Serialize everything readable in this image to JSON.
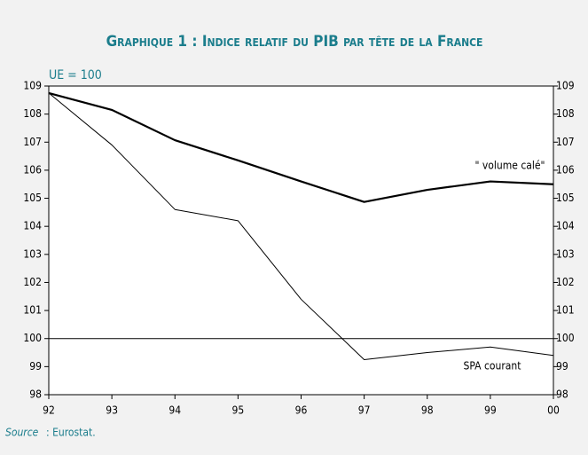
{
  "chart_data": {
    "type": "line",
    "title": "Graphique 1 : Indice relatif du PIB par tête de la France",
    "y_unit_label": "UE = 100",
    "categories": [
      "92",
      "93",
      "94",
      "95",
      "96",
      "97",
      "98",
      "99",
      "00"
    ],
    "series": [
      {
        "name": "\" volume calé\"",
        "color": "#000000",
        "values": [
          108.75,
          108.15,
          107.07,
          106.35,
          105.6,
          104.87,
          105.3,
          105.6,
          105.5
        ]
      },
      {
        "name": "SPA courant",
        "color": "#000000",
        "values": [
          108.75,
          106.9,
          104.6,
          104.2,
          101.4,
          99.25,
          99.5,
          99.7,
          99.4
        ]
      }
    ],
    "reference_line": 100,
    "ylim": [
      98,
      109
    ],
    "yticks": [
      98,
      99,
      100,
      101,
      102,
      103,
      104,
      105,
      106,
      107,
      108,
      109
    ],
    "source_label": "Source",
    "source_text": ": Eurostat."
  }
}
